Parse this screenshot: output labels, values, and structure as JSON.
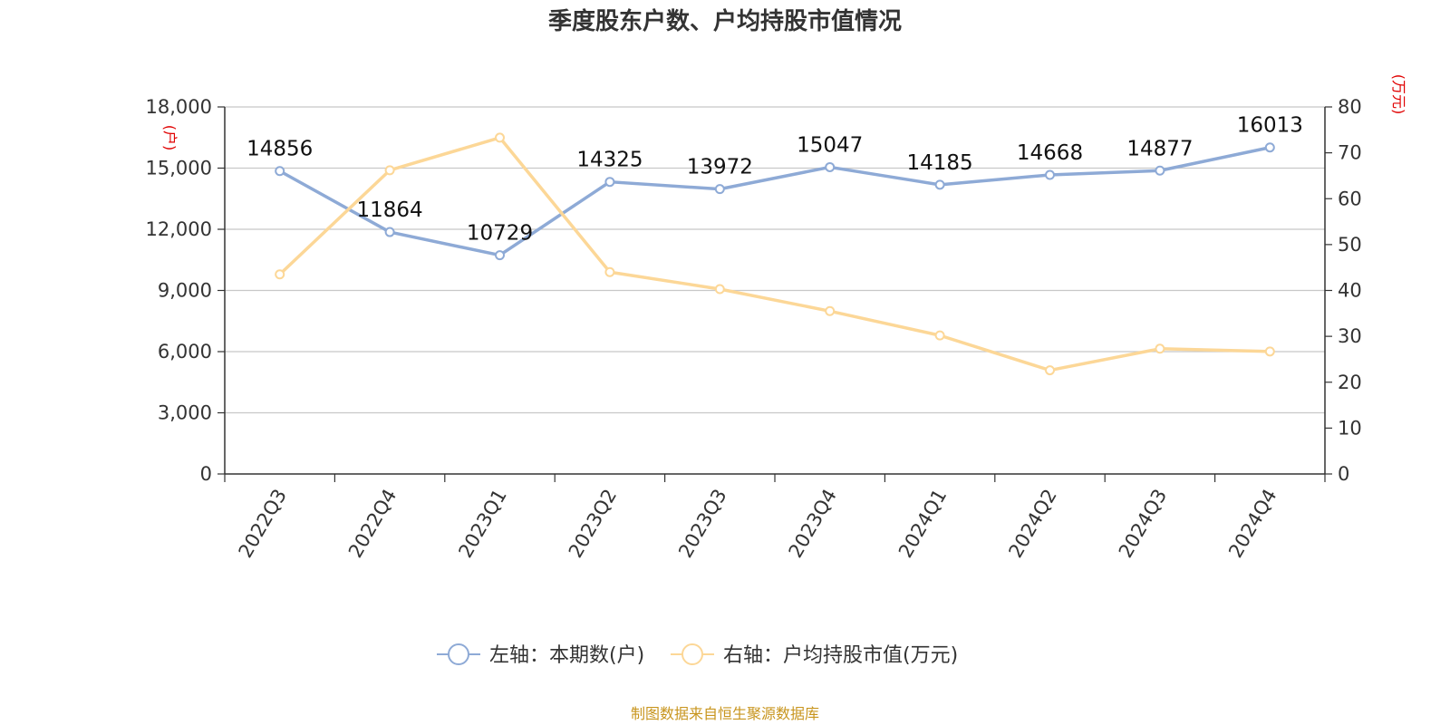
{
  "title": "季度股东户数、户均持股市值情况",
  "source": "制图数据来自恒生聚源数据库",
  "chart_data": {
    "type": "line",
    "categories": [
      "2022Q3",
      "2022Q4",
      "2023Q1",
      "2023Q2",
      "2023Q3",
      "2023Q4",
      "2024Q1",
      "2024Q2",
      "2024Q3",
      "2024Q4"
    ],
    "left_axis": {
      "unit_label": "(户)",
      "ylim": [
        0,
        18000
      ],
      "ticks": [
        "0",
        "3,000",
        "6,000",
        "9,000",
        "12,000",
        "15,000",
        "18,000"
      ]
    },
    "right_axis": {
      "unit_label": "(万元)",
      "ylim": [
        0,
        80
      ],
      "ticks": [
        "0",
        "10",
        "20",
        "30",
        "40",
        "50",
        "60",
        "70",
        "80"
      ]
    },
    "grid": true,
    "legend_position": "bottom-center",
    "series": [
      {
        "name": "左轴：本期数(户)",
        "axis": "left",
        "color": "#8eaad6",
        "values": [
          14856,
          11864,
          10729,
          14325,
          13972,
          15047,
          14185,
          14668,
          14877,
          16013
        ],
        "data_labels": [
          "14856",
          "11864",
          "10729",
          "14325",
          "13972",
          "15047",
          "14185",
          "14668",
          "14877",
          "16013"
        ]
      },
      {
        "name": "右轴：户均持股市值(万元)",
        "axis": "right",
        "color": "#fcd797",
        "values": [
          43.5,
          66.2,
          73.3,
          44.0,
          40.3,
          35.5,
          30.2,
          22.6,
          27.3,
          26.7
        ]
      }
    ]
  }
}
